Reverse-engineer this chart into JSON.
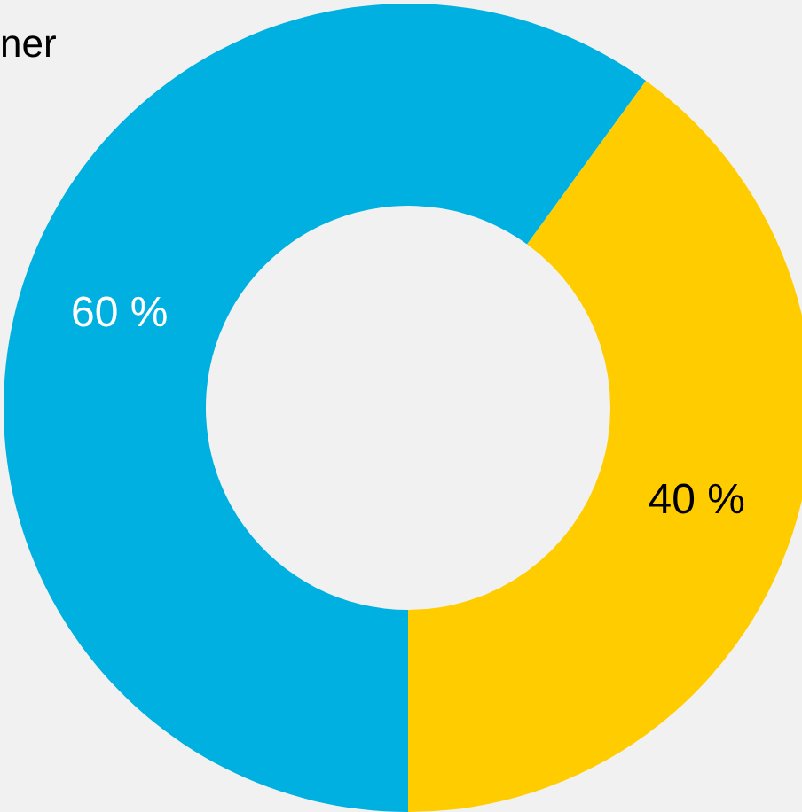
{
  "chart_data": {
    "type": "donut",
    "categories": [
      null,
      null
    ],
    "values": [
      40,
      60
    ],
    "colors": [
      "#ffcc00",
      "#00b0e0"
    ],
    "value_labels": [
      "40 %",
      "60 %"
    ],
    "annotations": [
      "ner"
    ]
  }
}
